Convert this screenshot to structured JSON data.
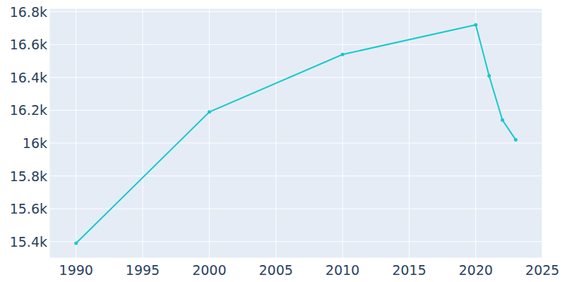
{
  "chart_data": {
    "type": "line",
    "x": [
      1990,
      2000,
      2010,
      2020,
      2021,
      2022,
      2023
    ],
    "values": [
      15390,
      16190,
      16540,
      16720,
      16410,
      16140,
      16020
    ],
    "color": "#17c9c9",
    "marker": "circle",
    "xlim": [
      1988,
      2025
    ],
    "xticks": [
      1990,
      1995,
      2000,
      2005,
      2010,
      2015,
      2020,
      2025
    ],
    "ylim": [
      15300,
      16820
    ],
    "yticks": [
      {
        "value": 15400,
        "label": "15.4k"
      },
      {
        "value": 15600,
        "label": "15.6k"
      },
      {
        "value": 15800,
        "label": "15.8k"
      },
      {
        "value": 16000,
        "label": "16k"
      },
      {
        "value": 16200,
        "label": "16.2k"
      },
      {
        "value": 16400,
        "label": "16.4k"
      },
      {
        "value": 16600,
        "label": "16.6k"
      },
      {
        "value": 16800,
        "label": "16.8k"
      }
    ],
    "grid": true
  }
}
